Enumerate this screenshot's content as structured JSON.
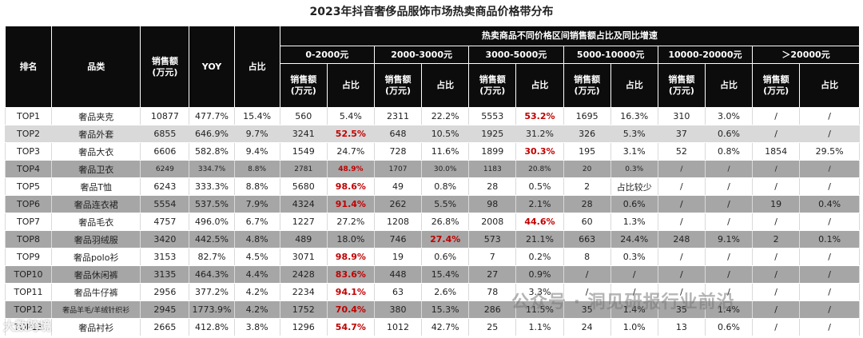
{
  "title": "2023年抖音奢侈品服饰市场热卖商品价格带分布",
  "header": {
    "rank": "排名",
    "category": "品类",
    "sales": "销售额\n(万元)",
    "yoy": "YOY",
    "share": "占比",
    "group_title": "热卖商品不同价格区间销售额占比及同比增速",
    "sub_sales": "销售额\n(万元)",
    "sub_share": "占比"
  },
  "chart_data": {
    "type": "table",
    "title": "2023年抖音奢侈品服饰市场热卖商品价格带分布",
    "price_bands": [
      "0-2000元",
      "2000-3000元",
      "3000-5000元",
      "5000-10000元",
      "10000-20000元",
      "＞20000元"
    ],
    "rows": [
      {
        "rank": "TOP1",
        "category": "奢品夹克",
        "sales": "10877",
        "yoy": "477.7%",
        "share": "15.4%",
        "bands": [
          [
            "560",
            "5.4%"
          ],
          [
            "2311",
            "22.2%"
          ],
          [
            "5553",
            "53.2%"
          ],
          [
            "1695",
            "16.3%"
          ],
          [
            "310",
            "3.0%"
          ],
          [
            "/",
            "/"
          ]
        ],
        "highlight": 2
      },
      {
        "rank": "TOP2",
        "category": "奢品外套",
        "sales": "6855",
        "yoy": "646.9%",
        "share": "9.7%",
        "bands": [
          [
            "3241",
            "52.5%"
          ],
          [
            "648",
            "10.5%"
          ],
          [
            "1925",
            "31.2%"
          ],
          [
            "326",
            "5.3%"
          ],
          [
            "37",
            "0.6%"
          ],
          [
            "/",
            "/"
          ]
        ],
        "highlight": 0
      },
      {
        "rank": "TOP3",
        "category": "奢品大衣",
        "sales": "6606",
        "yoy": "582.8%",
        "share": "9.4%",
        "bands": [
          [
            "1549",
            "24.7%"
          ],
          [
            "728",
            "11.6%"
          ],
          [
            "1899",
            "30.3%"
          ],
          [
            "195",
            "3.1%"
          ],
          [
            "52",
            "0.8%"
          ],
          [
            "1854",
            "29.5%"
          ]
        ],
        "highlight": 2
      },
      {
        "rank": "TOP4",
        "category": "奢品卫衣",
        "sales": "6249",
        "yoy": "334.7%",
        "share": "8.8%",
        "bands": [
          [
            "2781",
            "48.9%"
          ],
          [
            "1707",
            "30.0%"
          ],
          [
            "1183",
            "20.8%"
          ],
          [
            "20",
            "0.3%"
          ],
          [
            "/",
            "/"
          ],
          [
            "/",
            "/"
          ]
        ],
        "highlight": 0
      },
      {
        "rank": "TOP5",
        "category": "奢品T恤",
        "sales": "6243",
        "yoy": "333.3%",
        "share": "8.8%",
        "bands": [
          [
            "5680",
            "98.6%"
          ],
          [
            "49",
            "0.8%"
          ],
          [
            "28",
            "0.5%"
          ],
          [
            "2",
            "占比较少"
          ],
          [
            "/",
            "/"
          ],
          [
            "/",
            "/"
          ]
        ],
        "highlight": 0
      },
      {
        "rank": "TOP6",
        "category": "奢品连衣裙",
        "sales": "5554",
        "yoy": "537.5%",
        "share": "7.9%",
        "bands": [
          [
            "4324",
            "91.4%"
          ],
          [
            "262",
            "5.5%"
          ],
          [
            "98",
            "2.1%"
          ],
          [
            "28",
            "0.6%"
          ],
          [
            "/",
            "/"
          ],
          [
            "19",
            "0.4%"
          ]
        ],
        "highlight": 0
      },
      {
        "rank": "TOP7",
        "category": "奢品毛衣",
        "sales": "4757",
        "yoy": "496.0%",
        "share": "6.7%",
        "bands": [
          [
            "1227",
            "27.2%"
          ],
          [
            "1208",
            "26.8%"
          ],
          [
            "2008",
            "44.6%"
          ],
          [
            "60",
            "1.3%"
          ],
          [
            "/",
            "/"
          ],
          [
            "/",
            "/"
          ]
        ],
        "highlight": 2
      },
      {
        "rank": "TOP8",
        "category": "奢品羽绒服",
        "sales": "3420",
        "yoy": "442.5%",
        "share": "4.8%",
        "bands": [
          [
            "489",
            "18.0%"
          ],
          [
            "746",
            "27.4%"
          ],
          [
            "573",
            "21.1%"
          ],
          [
            "663",
            "24.4%"
          ],
          [
            "248",
            "9.1%"
          ],
          [
            "2",
            "0.1%"
          ]
        ],
        "highlight": 1
      },
      {
        "rank": "TOP9",
        "category": "奢品polo衫",
        "sales": "3153",
        "yoy": "82.7%",
        "share": "4.5%",
        "bands": [
          [
            "3071",
            "98.9%"
          ],
          [
            "19",
            "0.6%"
          ],
          [
            "7",
            "0.2%"
          ],
          [
            "8",
            "0.3%"
          ],
          [
            "/",
            "/"
          ],
          [
            "/",
            "/"
          ]
        ],
        "highlight": 0
      },
      {
        "rank": "TOP10",
        "category": "奢品休闲裤",
        "sales": "3135",
        "yoy": "464.3%",
        "share": "4.4%",
        "bands": [
          [
            "2428",
            "83.6%"
          ],
          [
            "448",
            "15.4%"
          ],
          [
            "27",
            "0.9%"
          ],
          [
            "/",
            "/"
          ],
          [
            "/",
            "/"
          ],
          [
            "/",
            "/"
          ]
        ],
        "highlight": 0
      },
      {
        "rank": "TOP11",
        "category": "奢品牛仔裤",
        "sales": "2956",
        "yoy": "377.2%",
        "share": "4.2%",
        "bands": [
          [
            "2234",
            "94.1%"
          ],
          [
            "63",
            "2.6%"
          ],
          [
            "78",
            "3.3%"
          ],
          [
            "/",
            "/"
          ],
          [
            "/",
            "/"
          ],
          [
            "/",
            "/"
          ]
        ],
        "highlight": 0
      },
      {
        "rank": "TOP12",
        "category": "奢品羊毛/羊绒针织衫",
        "sales": "2945",
        "yoy": "1773.9%",
        "share": "4.2%",
        "bands": [
          [
            "1752",
            "70.4%"
          ],
          [
            "380",
            "15.3%"
          ],
          [
            "286",
            "11.5%"
          ],
          [
            "35",
            "1.4%"
          ],
          [
            "35",
            "1.4%"
          ],
          [
            "/",
            "/"
          ]
        ],
        "highlight": 0
      },
      {
        "rank": "TOP13",
        "category": "奢品衬衫",
        "sales": "2665",
        "yoy": "412.8%",
        "share": "3.8%",
        "bands": [
          [
            "1296",
            "54.7%"
          ],
          [
            "1012",
            "42.7%"
          ],
          [
            "25",
            "1.1%"
          ],
          [
            "24",
            "1.0%"
          ],
          [
            "13",
            "0.6%"
          ],
          [
            "/",
            "/"
          ]
        ],
        "highlight": 0
      }
    ]
  },
  "row_styles": [
    "odd",
    "even",
    "odd",
    "dim",
    "odd",
    "dim",
    "odd",
    "dim",
    "odd",
    "dim",
    "odd",
    "dim",
    "odd"
  ],
  "small_rows": [
    3,
    4,
    5,
    6,
    7,
    8,
    9,
    10,
    11,
    12
  ],
  "watermarks": {
    "wechat": "公众号 · 洞见研报行业前沿",
    "brand": "大数跨境"
  },
  "colors": {
    "header_bg": "#0c0c0c",
    "highlight": "#c00000",
    "row_gray": "#d9d9d9",
    "row_dim": "#a6a6a6"
  }
}
